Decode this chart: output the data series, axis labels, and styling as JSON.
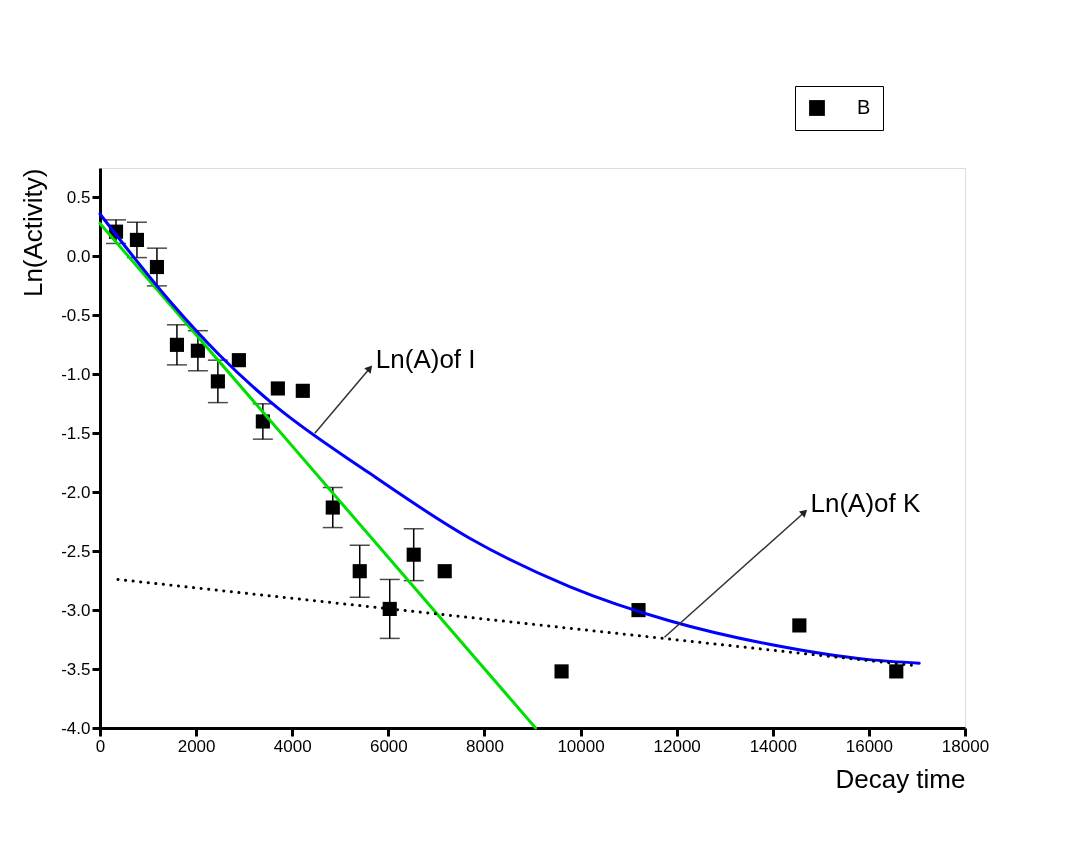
{
  "chart_data": {
    "type": "scatter",
    "xlabel": "Decay time",
    "ylabel": "Ln(Activity)",
    "xlim": [
      0,
      18000
    ],
    "xticks": [
      0,
      2000,
      4000,
      6000,
      8000,
      10000,
      12000,
      14000,
      16000,
      18000
    ],
    "ylim": [
      -4,
      0.75
    ],
    "yticks": [
      {
        "value": -4,
        "label": "-4.0"
      },
      -3.5,
      {
        "value": -3,
        "label": "-3.0"
      },
      -2.5,
      {
        "value": -2,
        "label": "-2.0"
      },
      -1.5,
      {
        "value": -1,
        "label": "-1.0"
      },
      -0.5,
      {
        "value": 0,
        "label": "0.0"
      },
      0.5
    ],
    "grid": false,
    "legend": "top right",
    "annotations": [
      {
        "text": "Ln(A)of I",
        "x": 4470,
        "y": -1.5
      },
      {
        "text": "Ln(A)of K",
        "x": 11746,
        "y": -3.23
      }
    ],
    "series": [
      {
        "name": "B",
        "marker": "square",
        "color": "#000000",
        "x": [
          333,
          769,
          1185,
          1601,
          2037,
          2453,
          2890,
          3389,
          3701,
          4220,
          4844,
          5405,
          6029,
          6528,
          7173,
          9605,
          11206,
          14553,
          16570
        ],
        "values": [
          0.21,
          0.14,
          -0.09,
          -0.75,
          -0.8,
          -1.06,
          -0.88,
          -1.4,
          -1.12,
          -1.14,
          -2.13,
          -2.67,
          -2.99,
          -2.53,
          -2.67,
          -3.52,
          -3.0,
          -3.13,
          -3.52
        ],
        "errors": [
          0.1,
          0.15,
          0.16,
          0.17,
          0.17,
          0.18,
          null,
          0.15,
          null,
          null,
          0.17,
          0.22,
          0.25,
          0.22,
          null,
          null,
          null,
          null,
          null
        ]
      },
      {
        "type": "line",
        "color": "#00e000",
        "line_style": "solid",
        "x": [
          0,
          9064
        ],
        "values": [
          0.28,
          -4.0
        ]
      },
      {
        "type": "line",
        "color": "#0000ff",
        "line_style": "solid",
        "x": [
          0,
          1455,
          2495,
          3534,
          5613,
          7692,
          9771,
          11850,
          13929,
          16008,
          17048
        ],
        "values": [
          0.36,
          -0.38,
          -0.84,
          -1.23,
          -1.84,
          -2.39,
          -2.8,
          -3.09,
          -3.29,
          -3.42,
          -3.45
        ]
      },
      {
        "type": "line",
        "color": "#000000",
        "line_style": "dotted",
        "x": [
          374,
          16944
        ],
        "values": [
          -2.74,
          -3.47
        ]
      }
    ]
  }
}
